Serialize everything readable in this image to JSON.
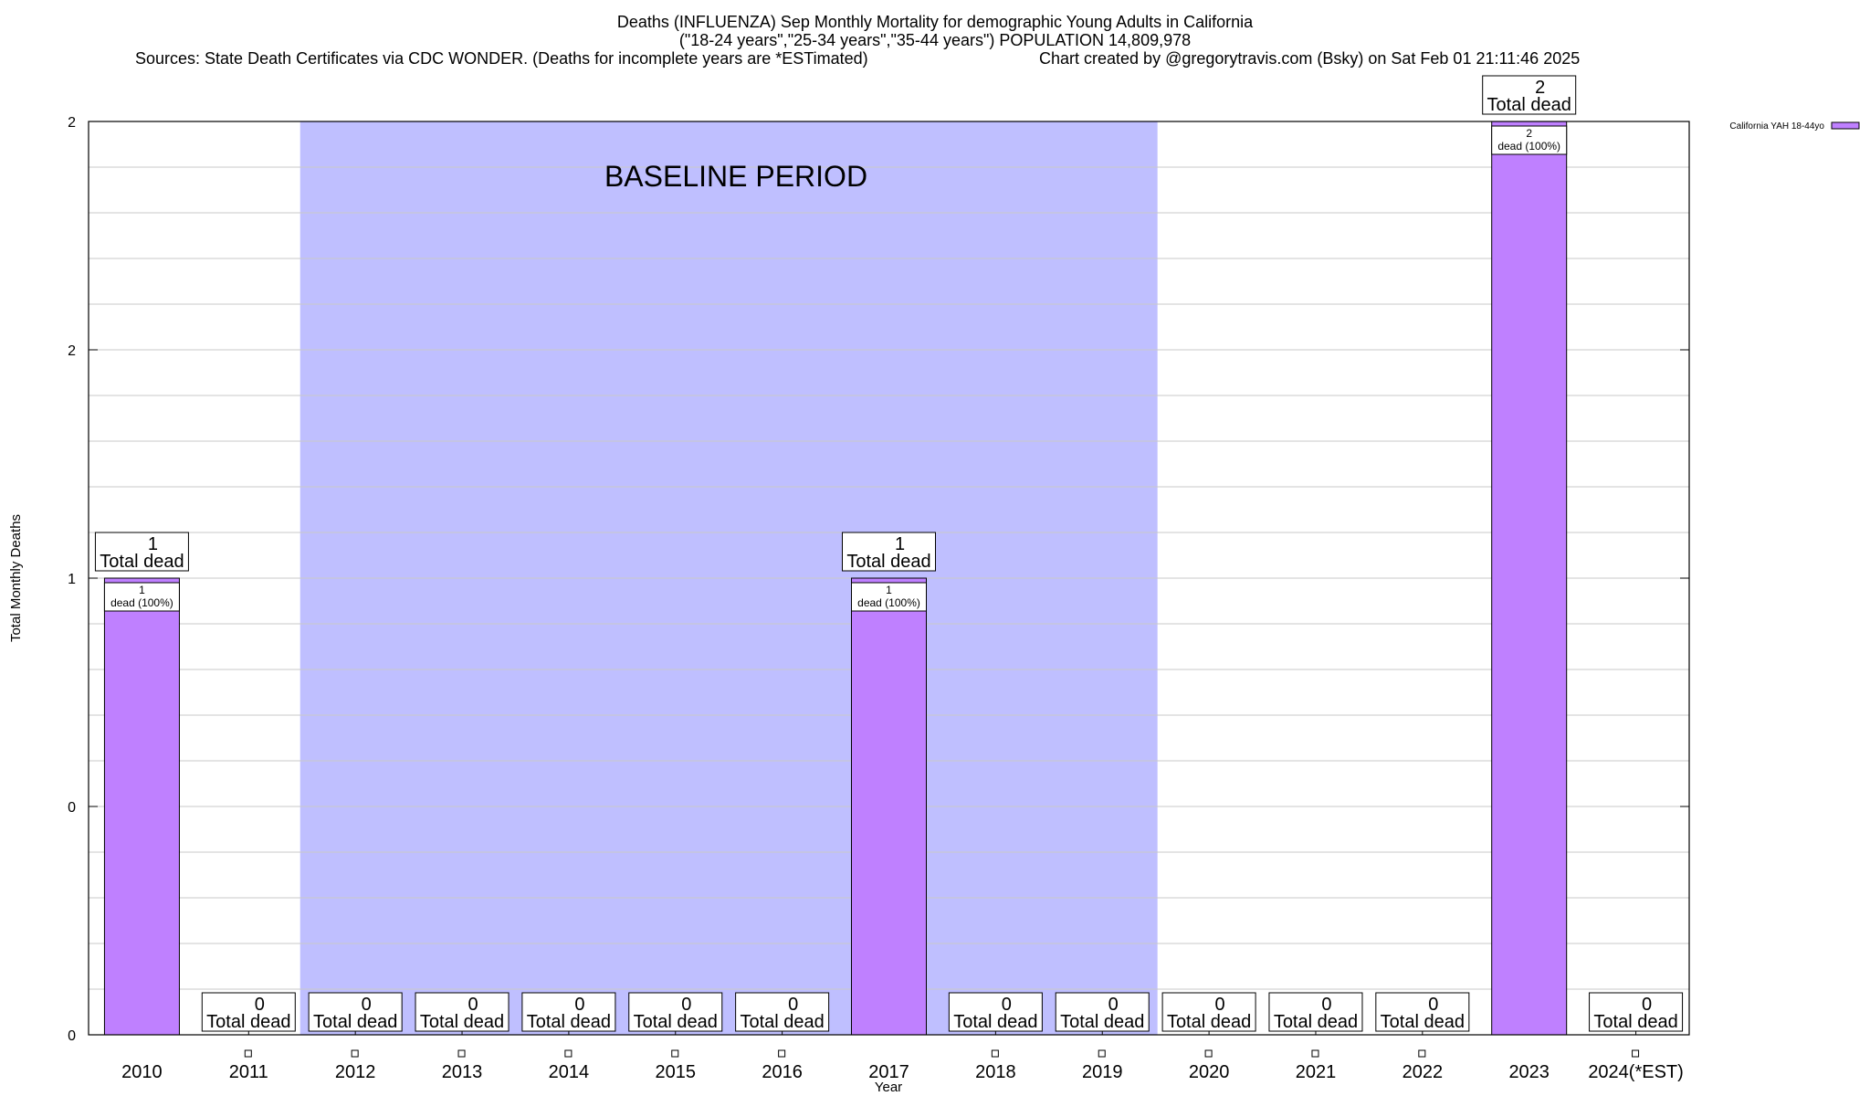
{
  "chart_data": {
    "type": "bar",
    "title_line1": "Deaths (INFLUENZA) Sep Monthly Mortality for demographic Young Adults in California",
    "title_line2": "(\"18-24 years\",\"25-34 years\",\"35-44 years\") POPULATION 14,809,978",
    "title_line3_left": "Sources: State Death Certificates via CDC WONDER. (Deaths for incomplete years are *ESTimated)",
    "title_line3_right": "Chart created by @gregorytravis.com (Bsky) on Sat Feb 01 21:11:46 2025",
    "xlabel": "Year",
    "ylabel": "Total Monthly Deaths",
    "categories": [
      "2010",
      "2011",
      "2012",
      "2013",
      "2014",
      "2015",
      "2016",
      "2017",
      "2018",
      "2019",
      "2020",
      "2021",
      "2022",
      "2023",
      "2024(*EST)"
    ],
    "series": [
      {
        "name": "California YAH 18-44yo",
        "values": [
          1,
          0,
          0,
          0,
          0,
          0,
          0,
          1,
          0,
          0,
          0,
          0,
          0,
          2,
          0
        ]
      }
    ],
    "ylim": [
      0,
      2
    ],
    "yticks": [
      {
        "value": 0,
        "label": "0"
      },
      {
        "value": 0.5,
        "label": "0"
      },
      {
        "value": 1,
        "label": "1"
      },
      {
        "value": 1.5,
        "label": "2"
      },
      {
        "value": 2,
        "label": "2"
      }
    ],
    "baseline_period": {
      "label": "BASELINE PERIOD",
      "from": "2012",
      "to": "2019"
    },
    "total_label": "Total dead",
    "inner_label": "dead (100%)",
    "legend_position": "top-right",
    "grid": true,
    "colors": {
      "bar": "#bf80ff",
      "baseline": "#bfbfff"
    }
  }
}
